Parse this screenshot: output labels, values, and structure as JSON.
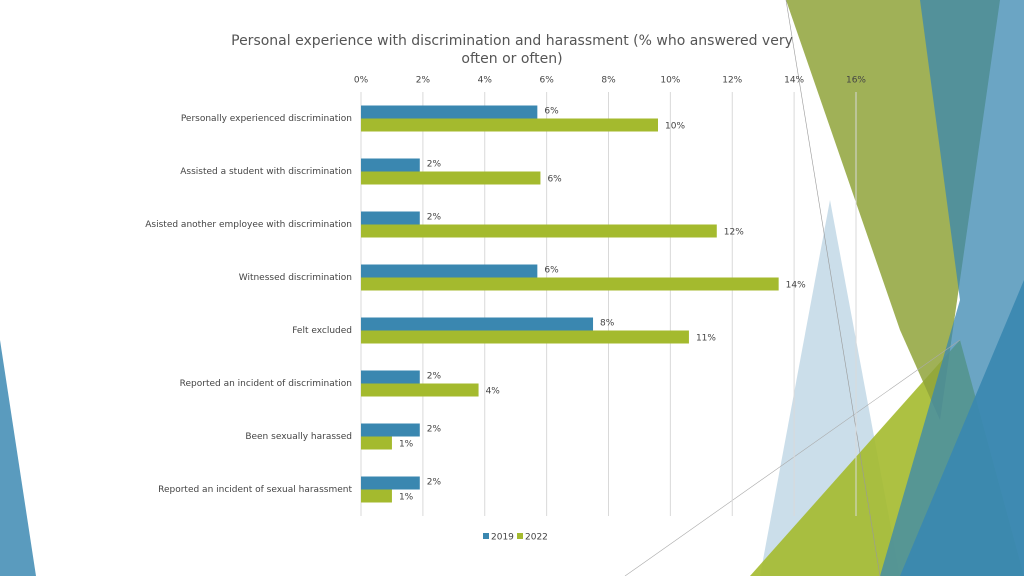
{
  "chart_data": {
    "type": "bar",
    "orientation": "horizontal",
    "title": "Personal experience with discrimination and harassment (% who answered very often or often)",
    "categories": [
      "Personally experienced discrimination",
      "Assisted a student with discrimination",
      "Asisted another employee with discrimination",
      "Witnessed discrimination",
      "Felt excluded",
      "Reported an incident of discrimination",
      "Been sexually harassed",
      "Reported an incident of sexual harassment"
    ],
    "series": [
      {
        "name": "2019",
        "color": "#3a87b0",
        "values": [
          5.7,
          1.9,
          1.9,
          5.7,
          7.5,
          1.9,
          1.9,
          1.9
        ],
        "value_labels": [
          "6%",
          "2%",
          "2%",
          "6%",
          "8%",
          "2%",
          "2%",
          "2%"
        ]
      },
      {
        "name": "2022",
        "color": "#a4ba2e",
        "values": [
          9.6,
          5.8,
          11.5,
          13.5,
          10.6,
          3.8,
          1.0,
          1.0
        ],
        "value_labels": [
          "10%",
          "6%",
          "12%",
          "14%",
          "11%",
          "4%",
          "1%",
          "1%"
        ]
      }
    ],
    "xlim": [
      0,
      16
    ],
    "xticks": [
      {
        "value": 0,
        "label": "0%"
      },
      {
        "value": 2,
        "label": "2%"
      },
      {
        "value": 4,
        "label": "4%"
      },
      {
        "value": 6,
        "label": "6%"
      },
      {
        "value": 8,
        "label": "8%"
      },
      {
        "value": 10,
        "label": "10%"
      },
      {
        "value": 12,
        "label": "12%"
      },
      {
        "value": 14,
        "label": "14%"
      },
      {
        "value": 16,
        "label": "16%"
      }
    ],
    "grid": true,
    "legend": "bottom"
  }
}
